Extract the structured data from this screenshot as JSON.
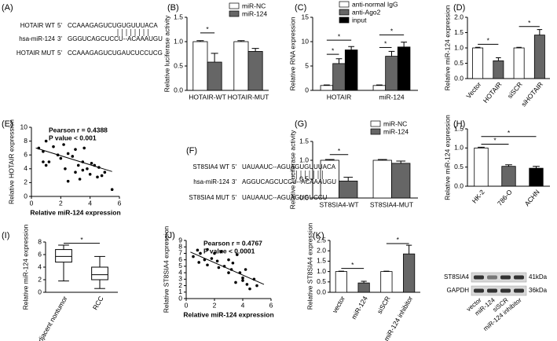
{
  "chart_data": [
    {
      "type": "bar",
      "panel": "(B)",
      "ylabel": "Relative luciferase activity",
      "legend": "upper right",
      "categories": [
        "HOTAIR-WT",
        "HOTAIR-MUT"
      ],
      "series": [
        {
          "name": "miR-NC",
          "color": "#ffffff",
          "values": [
            1,
            1
          ],
          "errors": [
            0.02,
            0.02
          ]
        },
        {
          "name": "miR-124",
          "color": "#666666",
          "values": [
            0.58,
            0.8
          ],
          "errors": [
            0.18,
            0.06
          ]
        }
      ],
      "ylim": [
        0,
        1.5
      ],
      "yticks": [
        {
          "value": 0,
          "label": "0.0"
        },
        {
          "value": 0.5,
          "label": "0.5"
        },
        {
          "value": 1,
          "label": "1.0"
        },
        {
          "value": 1.5,
          "label": "1.5"
        }
      ],
      "brackets": [
        {
          "label": "*",
          "y": 1.18
        }
      ]
    },
    {
      "type": "bar",
      "panel": "(C)",
      "ylabel": "Relative RNA expression",
      "legend": "upper left",
      "categories": [
        "HOTAIR",
        "miR-124"
      ],
      "series": [
        {
          "name": "anti-normal IgG",
          "color": "#ffffff",
          "values": [
            1,
            1
          ],
          "errors": [
            0.1,
            0.1
          ]
        },
        {
          "name": "anti-Ago2",
          "color": "#666666",
          "values": [
            5.5,
            7
          ],
          "errors": [
            1,
            1
          ]
        },
        {
          "name": "input",
          "color": "#000000",
          "values": [
            8.3,
            8.9
          ],
          "errors": [
            0.7,
            1
          ]
        }
      ],
      "ylim": [
        0,
        15
      ],
      "yticks": [
        0,
        5,
        10,
        15
      ],
      "brackets": [
        {
          "label": "*",
          "y": 7.4
        },
        {
          "label": "*",
          "y": 10.3
        },
        {
          "label": "*",
          "y": 8.8
        },
        {
          "label": "*",
          "y": 11.4
        }
      ]
    },
    {
      "type": "bar",
      "panel": "(D)",
      "ylabel": "Relative miR-124 expression",
      "categories": [
        "Vector",
        "HOTAIR",
        "siSCR",
        "siHOTAIR"
      ],
      "values": [
        1,
        0.58,
        1,
        1.42
      ],
      "errors": [
        0.02,
        0.1,
        0.02,
        0.18
      ],
      "colors": [
        "#ffffff",
        "#666666",
        "#ffffff",
        "#666666"
      ],
      "ylim": [
        0,
        2
      ],
      "yticks": [
        {
          "value": 0,
          "label": "0.0"
        },
        {
          "value": 0.5,
          "label": "0.5"
        },
        {
          "value": 1,
          "label": "1.0"
        },
        {
          "value": 1.5,
          "label": "1.5"
        },
        {
          "value": 2,
          "label": "2.0"
        }
      ],
      "brackets": [
        {
          "label": "*",
          "y": 1.12
        },
        {
          "label": "*",
          "y": 1.7
        }
      ]
    },
    {
      "type": "scatter",
      "panel": "(E)",
      "xlabel": "Relative miR-124 expression",
      "ylabel": "Relative HOTAIR expression",
      "annotations": [
        "Pearson r = 0.4388",
        "P value < 0.001"
      ],
      "x": [
        0.5,
        0.8,
        1.0,
        1.2,
        1.5,
        1.8,
        2.0,
        2.2,
        2.3,
        2.5,
        2.8,
        3.0,
        3.0,
        3.2,
        3.3,
        3.5,
        3.6,
        3.8,
        4.0,
        4.1,
        4.3,
        4.5,
        4.6,
        4.8,
        5.0,
        5.5,
        1.0,
        2.5,
        3.5,
        0.8
      ],
      "y": [
        7.0,
        6.5,
        8.0,
        5.0,
        7.2,
        6.0,
        5.5,
        7.5,
        4.0,
        6.2,
        5.8,
        3.5,
        6.8,
        4.5,
        2.5,
        5.0,
        7.0,
        4.0,
        3.2,
        4.8,
        4.5,
        2.8,
        4.2,
        3.0,
        3.5,
        1.0,
        4.5,
        2.2,
        3.8,
        5.0
      ],
      "fit": {
        "x": [
          0.3,
          5.5
        ],
        "y": [
          7.0,
          3.6
        ]
      },
      "xlim": [
        0,
        6
      ],
      "xticks": [
        0,
        2,
        4,
        6
      ],
      "ylim": [
        0,
        10
      ],
      "yticks": [
        0,
        2,
        4,
        6,
        8,
        10
      ]
    },
    {
      "type": "bar",
      "panel": "(G)",
      "ylabel": "Relative Luciferase activity",
      "legend": "upper right",
      "categories": [
        "ST8SIA4-WT",
        "ST8SIA4-MUT"
      ],
      "series": [
        {
          "name": "miR-NC",
          "color": "#ffffff",
          "values": [
            1,
            1
          ],
          "errors": [
            0.02,
            0.02
          ]
        },
        {
          "name": "miR-124",
          "color": "#666666",
          "values": [
            0.45,
            0.92
          ],
          "errors": [
            0.1,
            0.06
          ]
        }
      ],
      "ylim": [
        0,
        1.5
      ],
      "yticks": [
        {
          "value": 0,
          "label": "0.0"
        },
        {
          "value": 0.5,
          "label": "0.5"
        },
        {
          "value": 1,
          "label": "1.0"
        },
        {
          "value": 1.5,
          "label": "1.5"
        }
      ],
      "brackets": [
        {
          "label": "*",
          "y": 1.15
        }
      ]
    },
    {
      "type": "bar",
      "panel": "(H)",
      "ylabel": "Relative miR-124 expression",
      "categories": [
        "HK-2",
        "786-O",
        "ACHN"
      ],
      "values": [
        1,
        0.52,
        0.47
      ],
      "errors": [
        0.02,
        0.04,
        0.05
      ],
      "colors": [
        "#ffffff",
        "#666666",
        "#000000"
      ],
      "ylim": [
        0,
        1.5
      ],
      "yticks": [
        {
          "value": 0,
          "label": "0.0"
        },
        {
          "value": 0.5,
          "label": "0.5"
        },
        {
          "value": 1,
          "label": "1.0"
        },
        {
          "value": 1.5,
          "label": "1.5"
        }
      ],
      "brackets": [
        {
          "label": "*",
          "y": 1.1
        },
        {
          "label": "*",
          "y": 1.3
        }
      ]
    },
    {
      "type": "box",
      "panel": "(I)",
      "ylabel": "Relative miR-124 expression",
      "categories": [
        "adjacent nontumor",
        "RCC"
      ],
      "boxes": [
        {
          "min": 1.8,
          "q1": 4.8,
          "median": 5.7,
          "q3": 6.8,
          "max": 7.5
        },
        {
          "min": 0.6,
          "q1": 2.0,
          "median": 2.8,
          "q3": 4.0,
          "max": 5.7
        }
      ],
      "ylim": [
        0,
        8
      ],
      "yticks": [
        0,
        2,
        4,
        6,
        8
      ],
      "brackets": [
        {
          "label": "*",
          "y": 7.8
        }
      ]
    },
    {
      "type": "scatter",
      "panel": "(J)",
      "xlabel": "Relative miR-124 expression",
      "ylabel": "Relative ST8SIA4 expression",
      "annotations": [
        "Pearson r = 0.4767",
        "P value < 0.0001"
      ],
      "x": [
        0.5,
        0.8,
        1.0,
        1.3,
        1.5,
        1.8,
        2.0,
        2.2,
        2.5,
        2.7,
        3.0,
        3.2,
        3.3,
        3.5,
        3.6,
        3.8,
        4.0,
        4.2,
        4.3,
        4.5,
        4.8,
        5.0,
        1.5,
        2.3,
        3.0,
        4.0,
        0.9
      ],
      "y": [
        6.5,
        7.5,
        7.0,
        6.0,
        7.6,
        6.2,
        7.0,
        5.8,
        7.3,
        5.0,
        6.0,
        4.5,
        5.5,
        2.5,
        6.8,
        4.0,
        3.2,
        4.5,
        2.2,
        1.5,
        3.0,
        2.0,
        5.2,
        4.8,
        4.0,
        2.8,
        5.6
      ],
      "fit": {
        "x": [
          0.3,
          5.5
        ],
        "y": [
          7.2,
          2.2
        ]
      },
      "xlim": [
        0,
        6
      ],
      "xticks": [
        0,
        2,
        4,
        6
      ],
      "ylim": [
        0,
        9
      ],
      "yticks": [
        0,
        1,
        2,
        3,
        4,
        5,
        6,
        7,
        8,
        9
      ]
    },
    {
      "type": "bar",
      "panel": "(K)",
      "ylabel": "Relative ST8SIA4 expression",
      "categories": [
        "vector",
        "miR-124",
        "siSCR",
        "miR-124 inhibitor"
      ],
      "values": [
        1,
        0.45,
        1,
        1.85
      ],
      "errors": [
        0.02,
        0.08,
        0.02,
        0.42
      ],
      "colors": [
        "#ffffff",
        "#666666",
        "#ffffff",
        "#666666"
      ],
      "ylim": [
        0,
        2.5
      ],
      "yticks": [
        {
          "value": 0,
          "label": "0.0"
        },
        {
          "value": 0.5,
          "label": "0.5"
        },
        {
          "value": 1,
          "label": "1.0"
        },
        {
          "value": 1.5,
          "label": "1.5"
        },
        {
          "value": 2,
          "label": "2.0"
        },
        {
          "value": 2.5,
          "label": "2.5"
        }
      ],
      "brackets": [
        {
          "label": "*",
          "y": 1.15
        },
        {
          "label": "*",
          "y": 2.35
        }
      ]
    }
  ],
  "sequences": [
    {
      "panel": "(A)",
      "rows": [
        {
          "label": "HOTAIR WT",
          "end": "5'",
          "seq": "CCAAAGAGUCUGUGUUUACA"
        },
        {
          "label": "hsa-miR-124",
          "end": "3'",
          "seq": "GGGUCAGCUCCU--ACAAAUGU"
        },
        {
          "label": "HOTAIR MUT",
          "end": "5'",
          "seq": "CCAAAGAGUCUGAUCUCCUCG"
        }
      ]
    },
    {
      "panel": "(F)",
      "rows": [
        {
          "label": "ST8SIA4 WT",
          "end": "5'",
          "seq": "UAUAAUC--AGUAGUGUUUACA"
        },
        {
          "label": "hsa-miR-124",
          "end": "3'",
          "seq": "AGGUCAGCUCCU--ACAAAUGU"
        },
        {
          "label": "ST8SIA4 MUT",
          "end": "5'",
          "seq": "UAUAAUC--AGUAGUGUCCU"
        }
      ]
    }
  ],
  "blot": {
    "rows": [
      {
        "name": "ST8SIA4",
        "size": "41kDa"
      },
      {
        "name": "GAPDH",
        "size": "36kDa"
      }
    ],
    "lanes": [
      "vector",
      "miR-124",
      "siSCR",
      "miR-124 inhibitor"
    ]
  }
}
